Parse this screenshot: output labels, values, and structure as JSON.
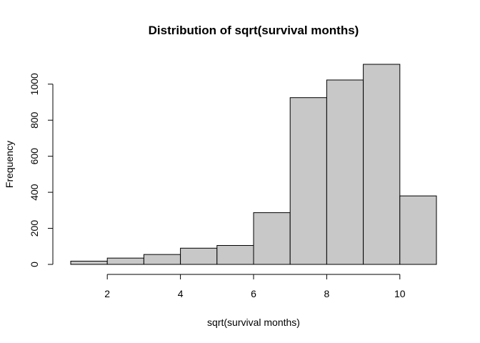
{
  "chart_data": {
    "type": "bar",
    "title": "Distribution of sqrt(survival months)",
    "xlabel": "sqrt(survival months)",
    "ylabel": "Frequency",
    "bins": [
      {
        "x0": 1,
        "x1": 2,
        "value": 18
      },
      {
        "x0": 2,
        "x1": 3,
        "value": 35
      },
      {
        "x0": 3,
        "x1": 4,
        "value": 55
      },
      {
        "x0": 4,
        "x1": 5,
        "value": 90
      },
      {
        "x0": 5,
        "x1": 6,
        "value": 105
      },
      {
        "x0": 6,
        "x1": 7,
        "value": 287
      },
      {
        "x0": 7,
        "x1": 8,
        "value": 925
      },
      {
        "x0": 8,
        "x1": 9,
        "value": 1023
      },
      {
        "x0": 9,
        "x1": 10,
        "value": 1110
      },
      {
        "x0": 10,
        "x1": 11,
        "value": 380
      }
    ],
    "xticks": [
      2,
      4,
      6,
      8,
      10
    ],
    "yticks": [
      0,
      200,
      400,
      600,
      800,
      1000
    ],
    "xlim": [
      1,
      11
    ],
    "ylim": [
      0,
      1110
    ],
    "grid": false,
    "bar_color": "#c8c8c8"
  }
}
